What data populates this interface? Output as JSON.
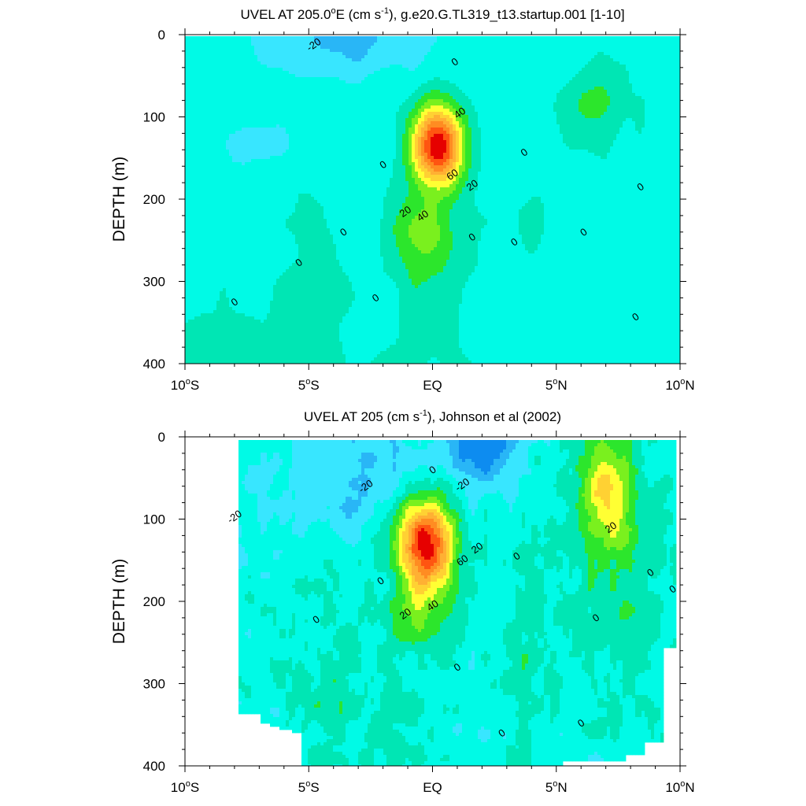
{
  "chart_data": [
    {
      "type": "contour",
      "title": "UVEL AT 205.0°E (cm s⁻¹), g.e20.G.TL319_t13.startup.001 [1-10]",
      "title_parts": {
        "prefix": "UVEL AT 205.0",
        "deg": "o",
        "mid": "E (cm s",
        "exp": "-1",
        "suffix": "), g.e20.G.TL319_t13.startup.001 [1-10]"
      },
      "xlabel": "",
      "ylabel": "DEPTH (m)",
      "xlim": [
        -10,
        10
      ],
      "ylim": [
        400,
        0
      ],
      "x_ticks": [
        {
          "value": -10,
          "num": "10",
          "sup": "o",
          "hemi": "S"
        },
        {
          "value": -5,
          "num": "5",
          "sup": "o",
          "hemi": "S"
        },
        {
          "value": 0,
          "num": "EQ",
          "sup": "",
          "hemi": ""
        },
        {
          "value": 5,
          "num": "5",
          "sup": "o",
          "hemi": "N"
        },
        {
          "value": 10,
          "num": "10",
          "sup": "o",
          "hemi": "N"
        }
      ],
      "y_ticks": [
        0,
        100,
        200,
        300,
        400
      ],
      "contour_interval": 10,
      "fill_colors": {
        "-40": "#0d8cf0",
        "-30": "#29b6f6",
        "-20": "#38e6ff",
        "-10": "#00fae6",
        "0": "#00e6b4",
        "10": "#2ce62c",
        "20": "#7af01e",
        "30": "#ffff33",
        "40": "#ffd133",
        "50": "#ffb033",
        "60": "#ff8c22",
        "70": "#ff5511",
        "80": "#e60000",
        "90": "#b40000"
      },
      "features": [
        {
          "kind": "equatorial_undercurrent_core",
          "lon": 0.2,
          "depth": 135,
          "max_value": 90
        },
        {
          "kind": "surface_westward_flow",
          "lon": -3,
          "depth": 10,
          "min_value": -25
        },
        {
          "kind": "eastward_jet",
          "lon": 6.5,
          "depth": 80,
          "max_value": 15
        }
      ],
      "contour_labels": [
        {
          "text": "-20",
          "lon": -4.8,
          "depth": 12
        },
        {
          "text": "0",
          "lon": 0.9,
          "depth": 33
        },
        {
          "text": "40",
          "lon": 1.1,
          "depth": 95
        },
        {
          "text": "0",
          "lon": -2.0,
          "depth": 158
        },
        {
          "text": "60",
          "lon": 0.8,
          "depth": 170
        },
        {
          "text": "20",
          "lon": 1.6,
          "depth": 183
        },
        {
          "text": "20",
          "lon": -1.1,
          "depth": 215
        },
        {
          "text": "40",
          "lon": -0.4,
          "depth": 220
        },
        {
          "text": "0",
          "lon": 3.7,
          "depth": 143
        },
        {
          "text": "0",
          "lon": 8.4,
          "depth": 185
        },
        {
          "text": "0",
          "lon": -3.6,
          "depth": 240
        },
        {
          "text": "0",
          "lon": -5.4,
          "depth": 277
        },
        {
          "text": "0",
          "lon": 1.6,
          "depth": 246
        },
        {
          "text": "0",
          "lon": 3.3,
          "depth": 252
        },
        {
          "text": "0",
          "lon": 6.1,
          "depth": 240
        },
        {
          "text": "0",
          "lon": -2.3,
          "depth": 320
        },
        {
          "text": "0",
          "lon": -8.0,
          "depth": 325
        },
        {
          "text": "0",
          "lon": 8.2,
          "depth": 343
        }
      ]
    },
    {
      "type": "contour",
      "title": "UVEL AT 205 (cm s⁻¹), Johnson et al (2002)",
      "title_parts": {
        "prefix": "UVEL AT 205",
        "deg": "",
        "mid": " (cm s",
        "exp": "-1",
        "suffix": "), Johnson et al (2002)"
      },
      "xlabel": "",
      "ylabel": "DEPTH (m)",
      "xlim": [
        -10,
        10
      ],
      "ylim": [
        400,
        0
      ],
      "x_ticks": [
        {
          "value": -10,
          "num": "10",
          "sup": "o",
          "hemi": "S"
        },
        {
          "value": -5,
          "num": "5",
          "sup": "o",
          "hemi": "S"
        },
        {
          "value": 0,
          "num": "EQ",
          "sup": "",
          "hemi": ""
        },
        {
          "value": 5,
          "num": "5",
          "sup": "o",
          "hemi": "N"
        },
        {
          "value": 10,
          "num": "10",
          "sup": "o",
          "hemi": "N"
        }
      ],
      "y_ticks": [
        0,
        100,
        200,
        300,
        400
      ],
      "contour_interval": 10,
      "data_extent_lon": [
        -8,
        9.9
      ],
      "fill_colors": {
        "-40": "#0d8cf0",
        "-30": "#29b6f6",
        "-20": "#38e6ff",
        "-10": "#00fae6",
        "0": "#00e6b4",
        "10": "#2ce62c",
        "20": "#7af01e",
        "30": "#ffff33",
        "40": "#ffd133",
        "50": "#ffb033",
        "60": "#ff8c22",
        "70": "#ff5511",
        "80": "#e60000",
        "90": "#b40000"
      },
      "features": [
        {
          "kind": "equatorial_undercurrent_core",
          "lon": -0.3,
          "depth": 130,
          "max_value": 90
        },
        {
          "kind": "south_equatorial_current",
          "lon": 2.0,
          "depth": 15,
          "min_value": -45
        },
        {
          "kind": "north_equatorial_countercurrent",
          "lon": 7.0,
          "depth": 60,
          "max_value": 40
        }
      ],
      "contour_labels": [
        {
          "text": "-20",
          "lon": -8.0,
          "depth": 97
        },
        {
          "text": "-20",
          "lon": -2.7,
          "depth": 60
        },
        {
          "text": "-20",
          "lon": 1.2,
          "depth": 58
        },
        {
          "text": "0",
          "lon": 0.0,
          "depth": 40
        },
        {
          "text": "20",
          "lon": 1.8,
          "depth": 135
        },
        {
          "text": "60",
          "lon": 1.2,
          "depth": 150
        },
        {
          "text": "0",
          "lon": -2.1,
          "depth": 175
        },
        {
          "text": "0",
          "lon": 3.4,
          "depth": 145
        },
        {
          "text": "40",
          "lon": 0.0,
          "depth": 205
        },
        {
          "text": "20",
          "lon": -1.1,
          "depth": 215
        },
        {
          "text": "20",
          "lon": 7.2,
          "depth": 110
        },
        {
          "text": "0",
          "lon": 8.8,
          "depth": 165
        },
        {
          "text": "0",
          "lon": 9.7,
          "depth": 185
        },
        {
          "text": "0",
          "lon": -4.7,
          "depth": 222
        },
        {
          "text": "0",
          "lon": 6.6,
          "depth": 220
        },
        {
          "text": "0",
          "lon": 1.0,
          "depth": 280
        },
        {
          "text": "0",
          "lon": 2.8,
          "depth": 360
        },
        {
          "text": "0",
          "lon": 6.0,
          "depth": 348
        }
      ]
    }
  ]
}
